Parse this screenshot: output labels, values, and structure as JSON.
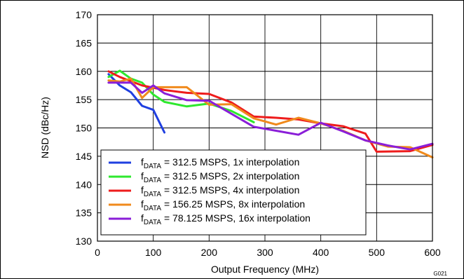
{
  "chart_data": {
    "type": "line",
    "xlabel": "Output Frequency (MHz)",
    "ylabel": "NSD (dBc/Hz)",
    "xlim": [
      0,
      600
    ],
    "ylim": [
      130,
      170
    ],
    "xticks": [
      0,
      100,
      200,
      300,
      400,
      500,
      600
    ],
    "yticks": [
      130,
      135,
      140,
      145,
      150,
      155,
      160,
      165,
      170
    ],
    "grid": true,
    "legend_position": "bottom-left",
    "figure_id": "G021",
    "series": [
      {
        "name_prefix": "f",
        "name_sub": "DATA",
        "name_rest": " = 312.5 MSPS, 1x interpolation",
        "color": "#1f3fe0",
        "x": [
          20,
          40,
          60,
          80,
          100,
          120
        ],
        "y": [
          159.5,
          157.5,
          156.3,
          153.9,
          153.2,
          149.2
        ]
      },
      {
        "name_prefix": "f",
        "name_sub": "DATA",
        "name_rest": " = 312.5 MSPS, 2x interpolation",
        "color": "#2ee82e",
        "x": [
          20,
          40,
          60,
          80,
          100,
          120,
          160,
          200,
          240,
          280
        ],
        "y": [
          159.0,
          160.1,
          158.7,
          158.0,
          155.9,
          154.6,
          153.8,
          154.3,
          153.0,
          151.0
        ]
      },
      {
        "name_prefix": "f",
        "name_sub": "DATA",
        "name_rest": " = 312.5 MSPS, 4x interpolation",
        "color": "#ee1c1c",
        "x": [
          20,
          40,
          80,
          120,
          160,
          200,
          240,
          280,
          320,
          360,
          400,
          440,
          480,
          500,
          560,
          600
        ],
        "y": [
          160.0,
          159.0,
          157.5,
          156.7,
          156.2,
          156.0,
          154.5,
          152.0,
          151.8,
          151.5,
          150.8,
          150.3,
          149.0,
          145.8,
          145.9,
          147.0
        ]
      },
      {
        "name_prefix": "f",
        "name_sub": "DATA",
        "name_rest": " = 156.25 MSPS, 8x interpolation",
        "color": "#f08a1c",
        "x": [
          20,
          40,
          60,
          80,
          100,
          120,
          160,
          200,
          240,
          280,
          320,
          360,
          400,
          440,
          480,
          520,
          560,
          600
        ],
        "y": [
          158.4,
          158.2,
          158.7,
          155.3,
          157.2,
          157.2,
          157.2,
          154.1,
          154.2,
          151.7,
          150.6,
          151.8,
          150.8,
          149.5,
          147.8,
          146.7,
          146.6,
          144.8
        ]
      },
      {
        "name_prefix": "f",
        "name_sub": "DATA",
        "name_rest": " = 78.125 MSPS, 16x interpolation",
        "color": "#8a1ed8",
        "x": [
          20,
          40,
          60,
          80,
          100,
          120,
          160,
          200,
          240,
          280,
          320,
          360,
          400,
          440,
          480,
          520,
          560,
          600
        ],
        "y": [
          158.0,
          158.0,
          158.0,
          156.2,
          157.5,
          156.1,
          154.9,
          154.8,
          152.5,
          150.2,
          149.5,
          148.8,
          150.9,
          149.4,
          147.8,
          146.9,
          146.2,
          147.2
        ]
      }
    ]
  }
}
